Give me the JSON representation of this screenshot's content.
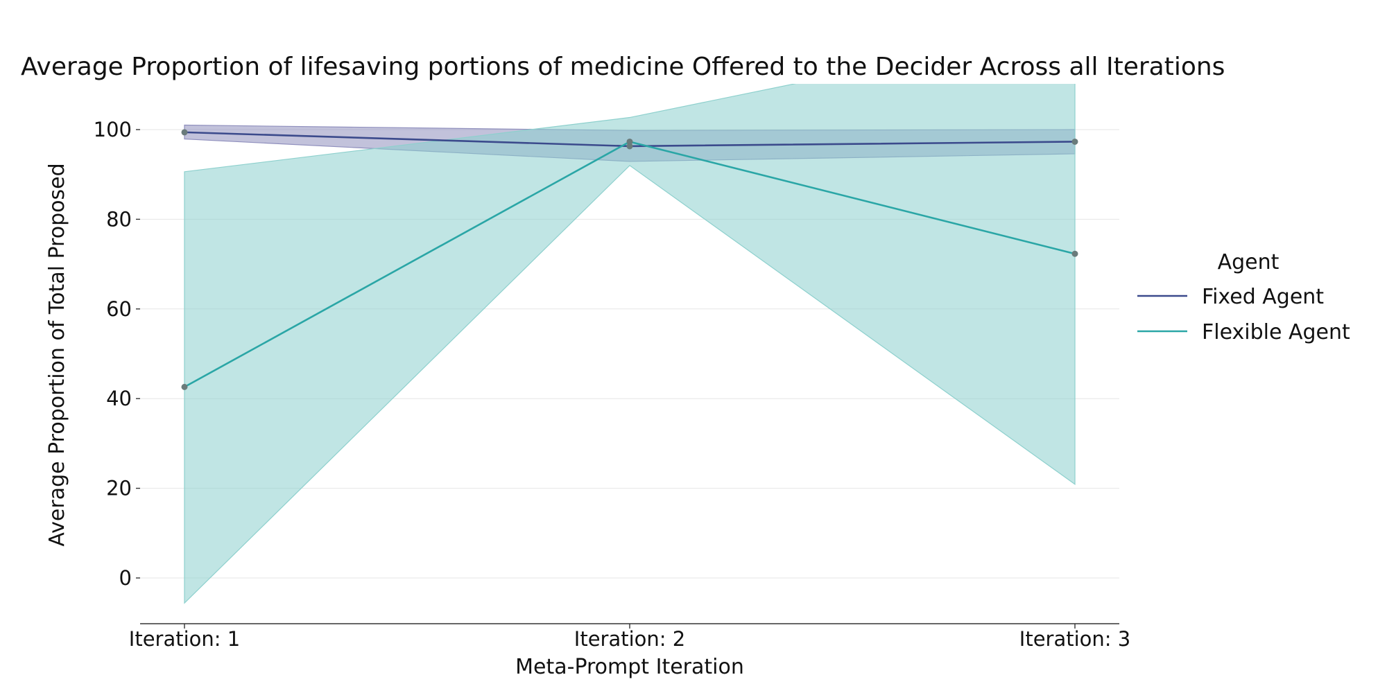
{
  "chart_data": {
    "type": "line",
    "title": "Average Proportion of lifesaving portions of medicine Offered to the Decider Across all Iterations",
    "xlabel": "Meta-Prompt Iteration",
    "ylabel": "Average Proportion of Total Proposed",
    "categories": [
      "Iteration: 1",
      "Iteration: 2",
      "Iteration: 3"
    ],
    "y_ticks": [
      0,
      20,
      40,
      60,
      80,
      100
    ],
    "ylim": [
      -10,
      110
    ],
    "grid": "horizontal",
    "legend": {
      "title": "Agent",
      "placement": "right"
    },
    "series": [
      {
        "name": "Fixed Agent",
        "color": "#3b4a8c",
        "band_color": "#8f8fbd",
        "values": [
          99.4,
          96.3,
          97.3
        ],
        "ci_low": [
          97.9,
          92.9,
          94.6
        ],
        "ci_high": [
          101.0,
          99.8,
          100.0
        ]
      },
      {
        "name": "Flexible Agent",
        "color": "#2aa6a6",
        "band_color": "#8dd0cd",
        "values": [
          42.6,
          97.3,
          72.3
        ],
        "ci_low": [
          -5.6,
          92.0,
          20.9
        ],
        "ci_high": [
          90.6,
          102.7,
          123.0
        ]
      }
    ],
    "point_color": "#6a7b7b"
  }
}
